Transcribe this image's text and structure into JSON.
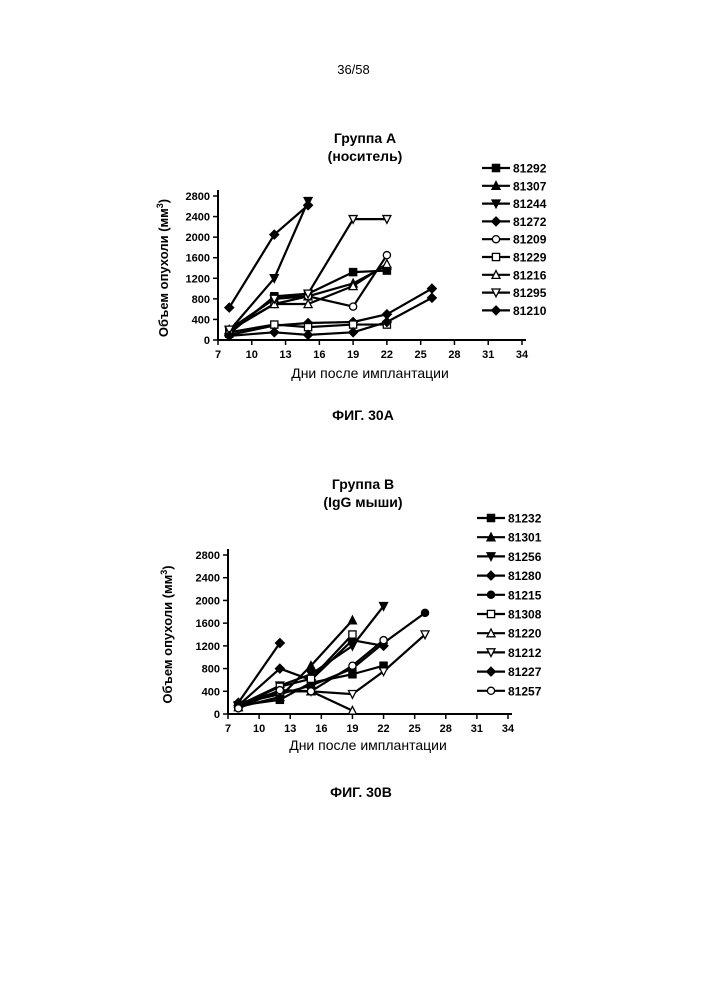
{
  "page": {
    "number": "36/58"
  },
  "chart_data": [
    {
      "type": "line",
      "title": "Группа А",
      "subtitle": "(носитель)",
      "caption": "ФИГ. 30А",
      "xlabel": "Дни после имплантации",
      "ylabel_main": "Объем опухоли (мм",
      "ylabel_sup": "3",
      "ylabel_close": ")",
      "xlim": [
        7,
        34
      ],
      "ylim": [
        0,
        2800
      ],
      "xticks": [
        7,
        10,
        13,
        16,
        19,
        22,
        25,
        28,
        31,
        34
      ],
      "yticks": [
        0,
        400,
        800,
        1200,
        1600,
        2000,
        2400,
        2800
      ],
      "legend_position": "right",
      "series": [
        {
          "name": "81292",
          "marker": "square-filled",
          "points": [
            [
              8,
              120
            ],
            [
              12,
              850
            ],
            [
              15,
              900
            ],
            [
              19,
              1320
            ],
            [
              22,
              1350
            ]
          ]
        },
        {
          "name": "81307",
          "marker": "triangle-filled",
          "points": [
            [
              8,
              200
            ],
            [
              12,
              800
            ],
            [
              15,
              850
            ],
            [
              19,
              1100
            ],
            [
              22,
              1450
            ]
          ]
        },
        {
          "name": "81244",
          "marker": "triangle-down-filled",
          "points": [
            [
              8,
              180
            ],
            [
              12,
              1200
            ],
            [
              15,
              2700
            ]
          ]
        },
        {
          "name": "81272",
          "marker": "diamond-filled",
          "points": [
            [
              8,
              100
            ],
            [
              12,
              280
            ],
            [
              15,
              330
            ],
            [
              19,
              350
            ],
            [
              22,
              500
            ],
            [
              26,
              1000
            ]
          ]
        },
        {
          "name": "81209",
          "marker": "circle-open",
          "points": [
            [
              8,
              180
            ],
            [
              12,
              700
            ],
            [
              15,
              850
            ],
            [
              19,
              650
            ],
            [
              22,
              1650
            ]
          ]
        },
        {
          "name": "81229",
          "marker": "square-open",
          "points": [
            [
              8,
              150
            ],
            [
              12,
              300
            ],
            [
              15,
              250
            ],
            [
              19,
              300
            ],
            [
              22,
              300
            ]
          ]
        },
        {
          "name": "81216",
          "marker": "triangle-open",
          "points": [
            [
              8,
              200
            ],
            [
              12,
              700
            ],
            [
              15,
              700
            ],
            [
              19,
              1050
            ],
            [
              22,
              1480
            ]
          ]
        },
        {
          "name": "81295",
          "marker": "triangle-down-open",
          "points": [
            [
              8,
              200
            ],
            [
              12,
              800
            ],
            [
              15,
              900
            ],
            [
              19,
              2350
            ],
            [
              22,
              2350
            ]
          ]
        },
        {
          "name": "81210",
          "marker": "diamond-filled",
          "points": [
            [
              8,
              630
            ],
            [
              12,
              2050
            ],
            [
              15,
              2620
            ]
          ]
        },
        {
          "name": "",
          "marker": "diamond-filled",
          "points": [
            [
              8,
              80
            ],
            [
              12,
              150
            ],
            [
              15,
              100
            ],
            [
              19,
              150
            ],
            [
              22,
              350
            ],
            [
              26,
              820
            ]
          ]
        }
      ]
    },
    {
      "type": "line",
      "title": "Группа B",
      "subtitle": "(IgG мыши)",
      "caption": "ФИГ. 30B",
      "xlabel": "Дни после имплантации",
      "ylabel_main": "Объем опухоли (мм",
      "ylabel_sup": "3",
      "ylabel_close": ")",
      "xlim": [
        7,
        34
      ],
      "ylim": [
        0,
        2800
      ],
      "xticks": [
        7,
        10,
        13,
        16,
        19,
        22,
        25,
        28,
        31,
        34
      ],
      "yticks": [
        0,
        400,
        800,
        1200,
        1600,
        2000,
        2400,
        2800
      ],
      "legend_position": "right",
      "series": [
        {
          "name": "81232",
          "marker": "square-filled",
          "points": [
            [
              8,
              150
            ],
            [
              12,
              250
            ],
            [
              15,
              550
            ],
            [
              19,
              700
            ],
            [
              22,
              850
            ]
          ]
        },
        {
          "name": "81301",
          "marker": "triangle-filled",
          "points": [
            [
              8,
              120
            ],
            [
              12,
              300
            ],
            [
              15,
              850
            ],
            [
              19,
              1650
            ]
          ]
        },
        {
          "name": "81256",
          "marker": "triangle-down-filled",
          "points": [
            [
              8,
              150
            ],
            [
              12,
              500
            ],
            [
              15,
              700
            ],
            [
              19,
              1200
            ],
            [
              22,
              1900
            ]
          ]
        },
        {
          "name": "81280",
          "marker": "diamond-filled",
          "points": [
            [
              8,
              150
            ],
            [
              12,
              800
            ],
            [
              15,
              600
            ],
            [
              19,
              1300
            ],
            [
              22,
              1200
            ]
          ]
        },
        {
          "name": "81215",
          "marker": "circle-filled",
          "points": [
            [
              8,
              180
            ],
            [
              12,
              350
            ],
            [
              15,
              500
            ],
            [
              19,
              800
            ],
            [
              22,
              1250
            ],
            [
              26,
              1780
            ]
          ]
        },
        {
          "name": "81308",
          "marker": "square-open",
          "points": [
            [
              8,
              150
            ],
            [
              12,
              480
            ],
            [
              15,
              620
            ],
            [
              19,
              1400
            ]
          ]
        },
        {
          "name": "81220",
          "marker": "triangle-open",
          "points": [
            [
              8,
              180
            ],
            [
              12,
              400
            ],
            [
              15,
              400
            ],
            [
              19,
              60
            ]
          ]
        },
        {
          "name": "81212",
          "marker": "triangle-down-open",
          "points": [
            [
              8,
              150
            ],
            [
              12,
              400
            ],
            [
              15,
              400
            ],
            [
              19,
              350
            ],
            [
              22,
              750
            ],
            [
              26,
              1400
            ]
          ]
        },
        {
          "name": "81227",
          "marker": "diamond-filled",
          "points": [
            [
              8,
              200
            ],
            [
              12,
              1250
            ]
          ]
        },
        {
          "name": "81257",
          "marker": "circle-open",
          "points": [
            [
              8,
              100
            ],
            [
              12,
              420
            ],
            [
              15,
              400
            ],
            [
              19,
              850
            ],
            [
              22,
              1300
            ]
          ]
        }
      ]
    }
  ]
}
